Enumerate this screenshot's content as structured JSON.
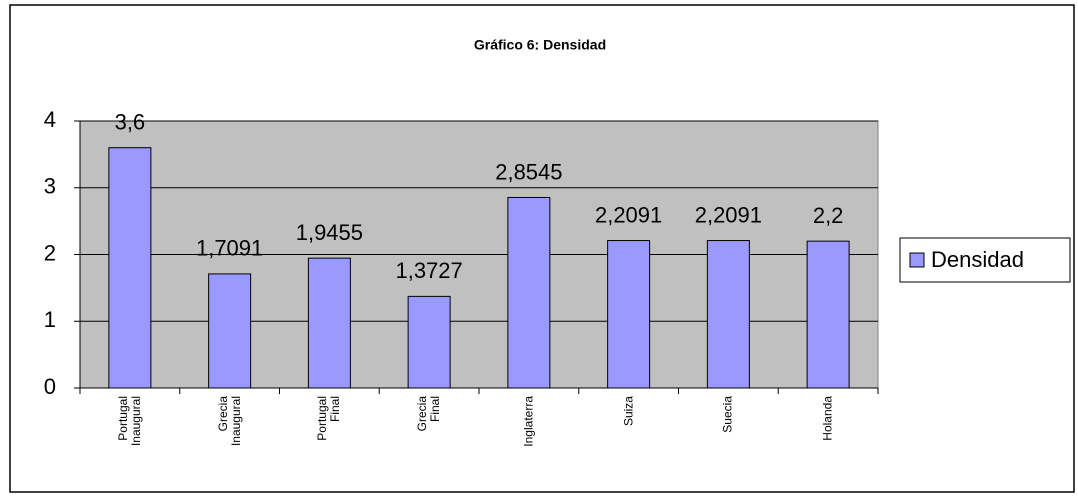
{
  "chart_data": {
    "type": "bar",
    "title": "Gráfico 6: Densidad",
    "categories": [
      "Portugal\nInaugural",
      "Grecia\nInaugural",
      "Portugal\nFinal",
      "Grecia\nFinal",
      "Inglaterra",
      "Suiza",
      "Suecia",
      "Holanda"
    ],
    "series": [
      {
        "name": "Densidad",
        "color": "#9999ff",
        "values": [
          3.6,
          1.7091,
          1.9455,
          1.3727,
          2.8545,
          2.2091,
          2.2091,
          2.2
        ],
        "value_labels": [
          "3,6",
          "1,7091",
          "1,9455",
          "1,3727",
          "2,8545",
          "2,2091",
          "2,2091",
          "2,2"
        ]
      }
    ],
    "ylim": [
      0,
      4
    ],
    "yticks": [
      0,
      1,
      2,
      3,
      4
    ],
    "grid": true,
    "legend": "right"
  }
}
